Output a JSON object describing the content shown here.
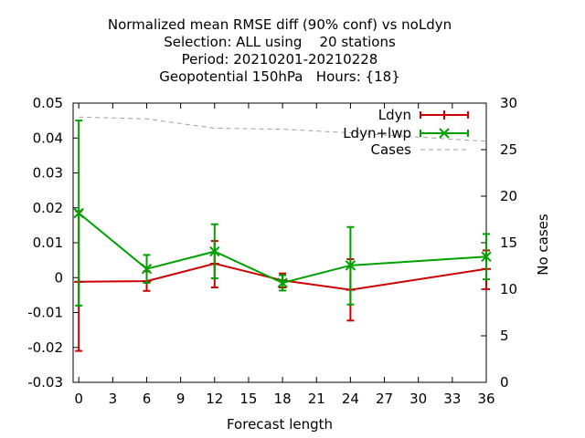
{
  "chart_data": {
    "type": "line",
    "title_lines": [
      "Normalized mean RMSE diff (90% conf) vs noLdyn",
      "Selection: ALL using    20 stations",
      "Period: 20210201-20210228",
      "Geopotential 150hPa   Hours: {18}"
    ],
    "xlabel": "Forecast length",
    "ylabel": "",
    "y2label": "No cases",
    "xlim": [
      -0.5,
      36
    ],
    "ylim": [
      -0.03,
      0.05
    ],
    "y2lim": [
      0,
      30
    ],
    "xticks": [
      0,
      3,
      6,
      9,
      12,
      15,
      18,
      21,
      24,
      27,
      30,
      33,
      36
    ],
    "yticks": [
      -0.03,
      -0.02,
      -0.01,
      0,
      0.01,
      0.02,
      0.03,
      0.04,
      0.05
    ],
    "yticklabels": [
      "-0.03",
      "-0.02",
      "-0.01",
      "0",
      "0.01",
      "0.02",
      "0.03",
      "0.04",
      "0.05"
    ],
    "y2ticks": [
      0,
      5,
      10,
      15,
      20,
      25,
      30
    ],
    "legend_position": "top-right",
    "series": [
      {
        "name": "Ldyn",
        "color": "#cc0000",
        "marker": "plus",
        "x": [
          0,
          6,
          12,
          18,
          24,
          36
        ],
        "y": [
          -0.0012,
          -0.001,
          0.004,
          -0.0008,
          -0.0035,
          0.0025
        ],
        "err_low": [
          -0.021,
          -0.0038,
          -0.0028,
          -0.0028,
          -0.0123,
          -0.0033
        ],
        "err_high": [
          0.019,
          0.0018,
          0.0105,
          0.0012,
          0.0053,
          0.0078
        ]
      },
      {
        "name": "Ldyn+lwp",
        "color": "#00a000",
        "marker": "cross",
        "x": [
          0,
          6,
          12,
          18,
          24,
          36
        ],
        "y": [
          0.0185,
          0.0025,
          0.0075,
          -0.0015,
          0.0035,
          0.006
        ],
        "err_low": [
          -0.008,
          -0.0015,
          -0.0002,
          -0.0037,
          -0.0077,
          -0.0005
        ],
        "err_high": [
          0.045,
          0.0065,
          0.0153,
          0.0007,
          0.0145,
          0.0125
        ]
      },
      {
        "name": "Cases",
        "color": "#a0a0a0",
        "dashed": true,
        "axis": "right",
        "x": [
          0,
          6,
          12,
          18,
          24,
          36
        ],
        "y": [
          28.5,
          28.3,
          27.3,
          27.2,
          26.8,
          25.9
        ]
      }
    ]
  }
}
